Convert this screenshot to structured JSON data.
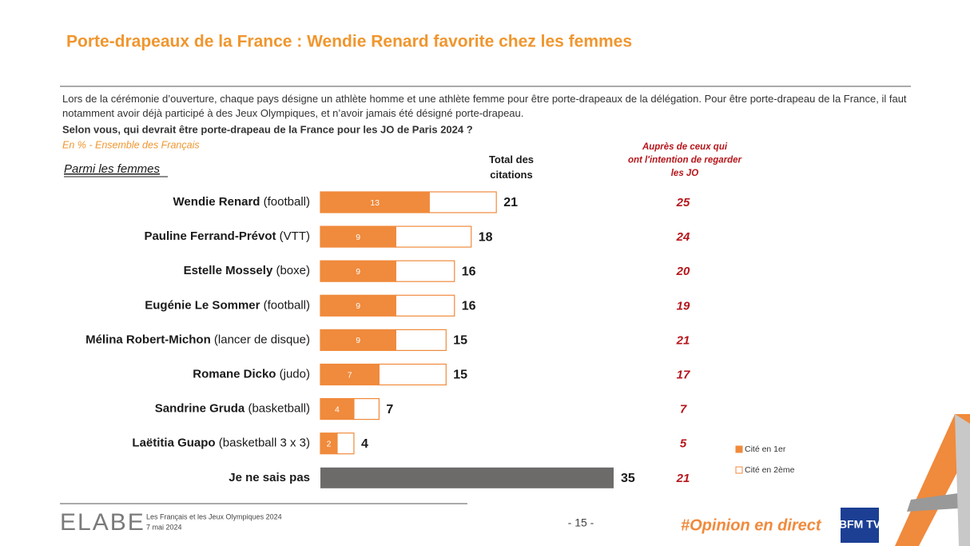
{
  "chart_data": {
    "type": "stacked-barh",
    "title": "Porte-drapeaux de la France : Wendie Renard favorite chez les femmes",
    "intro": "Lors de la cérémonie d’ouverture, chaque pays désigne un athlète homme et une athlète femme pour être porte-drapeaux de la délégation. Pour être porte-drapeau de la France, il faut notamment avoir déjà participé à des Jeux Olympiques, et n’avoir jamais été désigné porte-drapeau.",
    "question": "Selon vous, qui devrait être porte-drapeau de la France pour les JO de Paris 2024 ?",
    "subtitle": "En % - Ensemble des Français",
    "group_label": "Parmi les femmes",
    "totals_header": "Total des citations",
    "categories": [
      "Wendie Renard",
      "Pauline Ferrand-Prévot",
      "Estelle Mossely",
      "Eugénie Le Sommer",
      "Mélina Robert-Michon",
      "Romane Dicko",
      "Sandrine Gruda",
      "Laëtitia Guapo"
    ],
    "category_details": [
      "(football)",
      "(VTT)",
      "(boxe)",
      "(football)",
      "(lancer de disque)",
      "(judo)",
      "(basketball)",
      "(basketball 3 x 3)"
    ],
    "series": [
      {
        "name": "Cité en 1er",
        "color": "#f08a3c",
        "values": [
          13,
          9,
          9,
          9,
          9,
          7,
          4,
          2
        ]
      },
      {
        "name": "Cité en 2ème",
        "color": "#ffffff",
        "values": [
          8,
          9,
          7,
          7,
          6,
          8,
          3,
          2
        ]
      }
    ],
    "totals": [
      21,
      18,
      16,
      16,
      15,
      15,
      7,
      4
    ],
    "dont_know": {
      "label": "Je ne sais pas",
      "value": 35,
      "color": "#6d6a6a",
      "watchers": 21
    },
    "watchers_header": "Auprès de ceux qui ont l'intention de regarder les JO",
    "watchers": [
      25,
      24,
      20,
      19,
      21,
      17,
      7,
      5
    ],
    "xlim": [
      0,
      35
    ],
    "footer": {
      "brand": "ELABE",
      "study": "Les Français et les Jeux Olympiques 2024",
      "date": "7 mai 2024",
      "page": "- 15 -",
      "hashtag": "#Opinion en direct",
      "channel": "BFM TV"
    }
  }
}
